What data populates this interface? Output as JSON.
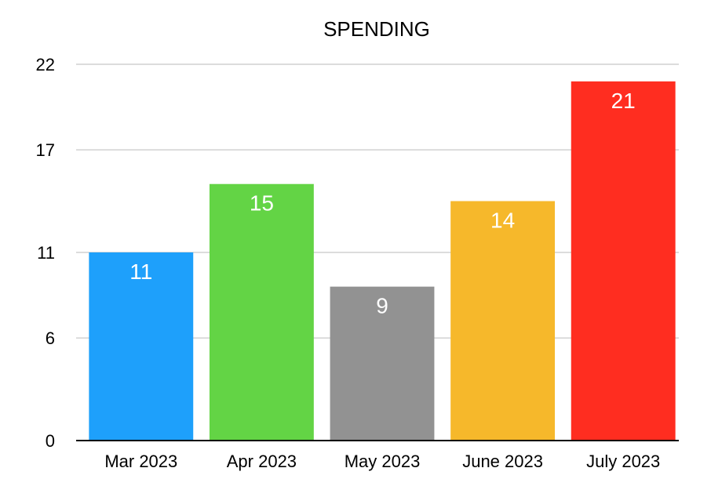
{
  "chart_data": {
    "type": "bar",
    "title": "SPENDING",
    "xlabel": "",
    "ylabel": "",
    "categories": [
      "Mar 2023",
      "Apr 2023",
      "May 2023",
      "June 2023",
      "July 2023"
    ],
    "values": [
      11,
      15,
      9,
      14,
      21
    ],
    "data_labels": [
      "11",
      "15",
      "9",
      "14",
      "21"
    ],
    "colors": [
      "#1ea0fb",
      "#63d445",
      "#929292",
      "#f6b82b",
      "#ff2d20"
    ],
    "yticks": [
      0,
      6,
      11,
      17,
      22
    ],
    "ytick_labels": [
      "0",
      "6",
      "11",
      "17",
      "22"
    ],
    "ylim": [
      0,
      22
    ],
    "grid": true,
    "legend": "none"
  }
}
